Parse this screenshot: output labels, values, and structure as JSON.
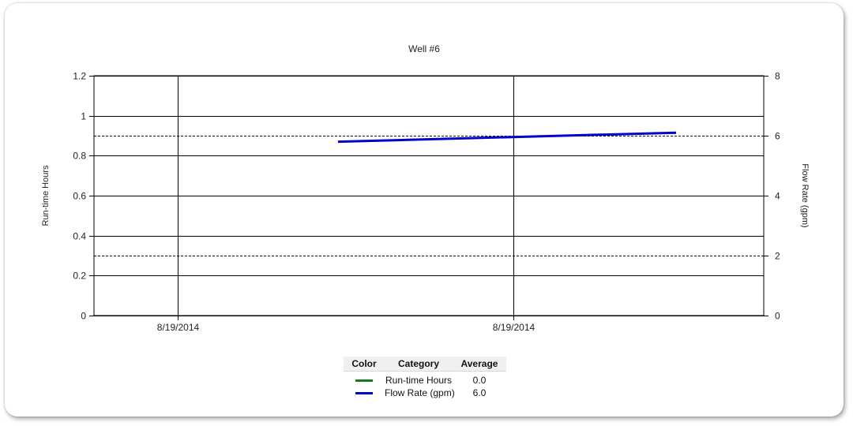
{
  "chart_data": {
    "type": "line",
    "title": "Well #6",
    "y_left": {
      "label": "Run-time Hours",
      "range": [
        0,
        1.2
      ],
      "ticks": [
        "0",
        "0.2",
        "0.4",
        "0.6",
        "0.8",
        "1",
        "1.2"
      ]
    },
    "y_right": {
      "label": "Flow Rate (gpm)",
      "range": [
        0,
        8
      ],
      "ticks": [
        "0",
        "2",
        "4",
        "6",
        "8"
      ]
    },
    "x_ticks": [
      "8/19/2014",
      "8/19/2014"
    ],
    "grid": true,
    "reference_lines_right_axis": [
      6,
      2
    ],
    "series": [
      {
        "name": "Run-time Hours",
        "color": "#1a7a1a",
        "axis": "left",
        "values": []
      },
      {
        "name": "Flow Rate (gpm)",
        "color": "#0000cc",
        "axis": "right",
        "start": 5.8,
        "end": 6.1
      }
    ]
  },
  "legend": {
    "headers": {
      "color": "Color",
      "category": "Category",
      "average": "Average"
    },
    "rows": [
      {
        "category": "Run-time Hours",
        "average": "0.0",
        "color": "#1a7a1a"
      },
      {
        "category": "Flow Rate (gpm)",
        "average": "6.0",
        "color": "#0000cc"
      }
    ]
  }
}
